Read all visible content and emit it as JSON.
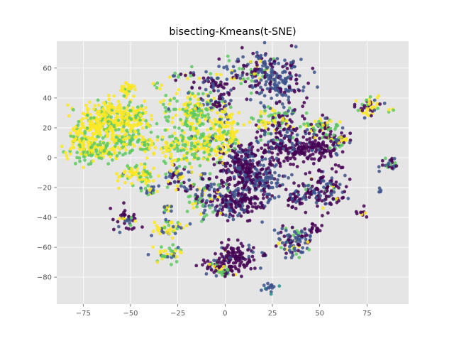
{
  "chart_data": {
    "type": "scatter",
    "title": "bisecting-Kmeans(t-SNE)",
    "xlabel": "",
    "ylabel": "",
    "xlim": [
      -89,
      97
    ],
    "ylim": [
      -98,
      78
    ],
    "x_ticks": [
      -75,
      -50,
      -25,
      0,
      25,
      50,
      75
    ],
    "x_tick_labels": [
      "−75",
      "−50",
      "−25",
      "0",
      "25",
      "50",
      "75"
    ],
    "y_ticks": [
      -80,
      -60,
      -40,
      -20,
      0,
      20,
      40,
      60
    ],
    "y_tick_labels": [
      "−80",
      "−60",
      "−40",
      "−20",
      "0",
      "20",
      "40",
      "60"
    ],
    "grid": true,
    "legend": "none",
    "style": "ggplot",
    "background_color": "#E5E5E5",
    "grid_color": "#FFFFFF",
    "cluster_colors": [
      "#440154",
      "#3B528B",
      "#21918C",
      "#5EC962",
      "#FDE725"
    ],
    "regions": [
      {
        "x": -63,
        "y": 25,
        "sx": 7,
        "sy": 7,
        "n": 260,
        "mix": [
          0,
          0,
          0,
          0.2,
          0.8
        ]
      },
      {
        "x": -75,
        "y": 10,
        "sx": 5,
        "sy": 6,
        "n": 140,
        "mix": [
          0,
          0,
          0,
          0.25,
          0.75
        ]
      },
      {
        "x": -65,
        "y": 4,
        "sx": 5,
        "sy": 4,
        "n": 80,
        "mix": [
          0,
          0,
          0,
          0.4,
          0.6
        ]
      },
      {
        "x": -47,
        "y": 25,
        "sx": 5,
        "sy": 7,
        "n": 110,
        "mix": [
          0,
          0,
          0,
          0.35,
          0.65
        ]
      },
      {
        "x": -53,
        "y": 12,
        "sx": 4,
        "sy": 4,
        "n": 60,
        "mix": [
          0,
          0,
          0,
          0.5,
          0.5
        ]
      },
      {
        "x": -42,
        "y": 8,
        "sx": 3,
        "sy": 3,
        "n": 40,
        "mix": [
          0,
          0,
          0,
          0.4,
          0.6
        ]
      },
      {
        "x": -51,
        "y": 46,
        "sx": 2.5,
        "sy": 2,
        "n": 30,
        "mix": [
          0,
          0,
          0,
          0.2,
          0.8
        ]
      },
      {
        "x": -46,
        "y": -11,
        "sx": 5,
        "sy": 4,
        "n": 80,
        "mix": [
          0,
          0.05,
          0,
          0.25,
          0.7
        ]
      },
      {
        "x": -40,
        "y": -22,
        "sx": 2.5,
        "sy": 2,
        "n": 20,
        "mix": [
          0,
          0.3,
          0,
          0.4,
          0.3
        ]
      },
      {
        "x": -17,
        "y": 32,
        "sx": 7,
        "sy": 6,
        "n": 150,
        "mix": [
          0,
          0.05,
          0,
          0.55,
          0.4
        ]
      },
      {
        "x": -13,
        "y": 10,
        "sx": 7,
        "sy": 7,
        "n": 170,
        "mix": [
          0,
          0.05,
          0,
          0.5,
          0.45
        ]
      },
      {
        "x": -27,
        "y": 6,
        "sx": 4,
        "sy": 5,
        "n": 60,
        "mix": [
          0,
          0,
          0,
          0.6,
          0.4
        ]
      },
      {
        "x": 0,
        "y": 20,
        "sx": 4,
        "sy": 7,
        "n": 110,
        "mix": [
          0,
          0.05,
          0,
          0.15,
          0.8
        ]
      },
      {
        "x": 10,
        "y": -5,
        "sx": 7,
        "sy": 8,
        "n": 220,
        "mix": [
          0.75,
          0.25,
          0,
          0,
          0
        ]
      },
      {
        "x": 20,
        "y": -15,
        "sx": 7,
        "sy": 6,
        "n": 110,
        "mix": [
          0.2,
          0.8,
          0,
          0,
          0
        ]
      },
      {
        "x": 7,
        "y": -30,
        "sx": 8,
        "sy": 6,
        "n": 190,
        "mix": [
          0.7,
          0.3,
          0,
          0,
          0
        ]
      },
      {
        "x": 30,
        "y": 8,
        "sx": 6,
        "sy": 7,
        "n": 150,
        "mix": [
          0.7,
          0.3,
          0,
          0,
          0
        ]
      },
      {
        "x": 25,
        "y": 25,
        "sx": 6,
        "sy": 5,
        "n": 70,
        "mix": [
          0.1,
          0.05,
          0,
          0.4,
          0.45
        ]
      },
      {
        "x": 28,
        "y": 52,
        "sx": 8,
        "sy": 9,
        "n": 180,
        "mix": [
          0.3,
          0.7,
          0,
          0,
          0
        ]
      },
      {
        "x": 14,
        "y": 58,
        "sx": 7,
        "sy": 6,
        "n": 90,
        "mix": [
          0.4,
          0.4,
          0,
          0.1,
          0.1
        ]
      },
      {
        "x": -5,
        "y": 50,
        "sx": 6,
        "sy": 4,
        "n": 50,
        "mix": [
          0.4,
          0.4,
          0,
          0.1,
          0.1
        ]
      },
      {
        "x": -2,
        "y": 35,
        "sx": 3,
        "sy": 3,
        "n": 30,
        "mix": [
          0.5,
          0.3,
          0,
          0.1,
          0.1
        ]
      },
      {
        "x": -10,
        "y": -25,
        "sx": 6,
        "sy": 7,
        "n": 100,
        "mix": [
          0.2,
          0.35,
          0,
          0.25,
          0.2
        ]
      },
      {
        "x": -25,
        "y": -12,
        "sx": 4,
        "sy": 4,
        "n": 45,
        "mix": [
          0.2,
          0.4,
          0,
          0.2,
          0.2
        ]
      },
      {
        "x": -31,
        "y": -34,
        "sx": 2,
        "sy": 1.5,
        "n": 12,
        "mix": [
          0,
          0.3,
          0,
          0.3,
          0.4
        ]
      },
      {
        "x": 5,
        "y": -67,
        "sx": 5,
        "sy": 5,
        "n": 120,
        "mix": [
          0.85,
          0.1,
          0,
          0,
          0.05
        ]
      },
      {
        "x": -6,
        "y": -73,
        "sx": 3,
        "sy": 3,
        "n": 35,
        "mix": [
          0.6,
          0.2,
          0,
          0.1,
          0.1
        ]
      },
      {
        "x": 0,
        "y": -76,
        "sx": 3,
        "sy": 2,
        "n": 20,
        "mix": [
          0.3,
          0.2,
          0,
          0.3,
          0.2
        ]
      },
      {
        "x": -30,
        "y": -47,
        "sx": 4,
        "sy": 3,
        "n": 45,
        "mix": [
          0,
          0.3,
          0,
          0.1,
          0.6
        ]
      },
      {
        "x": -30,
        "y": -64,
        "sx": 4,
        "sy": 3,
        "n": 40,
        "mix": [
          0,
          0.2,
          0,
          0.3,
          0.5
        ]
      },
      {
        "x": -53,
        "y": -42,
        "sx": 3,
        "sy": 5,
        "n": 40,
        "mix": [
          0.6,
          0.2,
          0,
          0.1,
          0.1
        ]
      },
      {
        "x": 48,
        "y": 7,
        "sx": 7,
        "sy": 5,
        "n": 130,
        "mix": [
          0.9,
          0.1,
          0,
          0,
          0
        ]
      },
      {
        "x": 50,
        "y": 20,
        "sx": 5,
        "sy": 4,
        "n": 70,
        "mix": [
          0.4,
          0.1,
          0,
          0.3,
          0.2
        ]
      },
      {
        "x": 60,
        "y": 10,
        "sx": 3,
        "sy": 3,
        "n": 30,
        "mix": [
          0.3,
          0.2,
          0,
          0.2,
          0.3
        ]
      },
      {
        "x": 52,
        "y": -22,
        "sx": 6,
        "sy": 6,
        "n": 130,
        "mix": [
          0.6,
          0.3,
          0,
          0.05,
          0.05
        ]
      },
      {
        "x": 38,
        "y": -27,
        "sx": 3,
        "sy": 3,
        "n": 40,
        "mix": [
          0.7,
          0.3,
          0,
          0,
          0
        ]
      },
      {
        "x": 36,
        "y": -55,
        "sx": 6,
        "sy": 5,
        "n": 100,
        "mix": [
          0.3,
          0.5,
          0,
          0.1,
          0.1
        ]
      },
      {
        "x": 48,
        "y": -48,
        "sx": 2.5,
        "sy": 2,
        "n": 15,
        "mix": [
          0.8,
          0.2,
          0,
          0,
          0
        ]
      },
      {
        "x": 77,
        "y": 34,
        "sx": 3.5,
        "sy": 3,
        "n": 50,
        "mix": [
          0.3,
          0.1,
          0,
          0.1,
          0.5
        ]
      },
      {
        "x": 86,
        "y": -5,
        "sx": 2.5,
        "sy": 2.5,
        "n": 25,
        "mix": [
          0.3,
          0.5,
          0,
          0.1,
          0.1
        ]
      },
      {
        "x": 73,
        "y": -37,
        "sx": 1.5,
        "sy": 2,
        "n": 10,
        "mix": [
          0.8,
          0,
          0,
          0,
          0.2
        ]
      },
      {
        "x": 82,
        "y": -22,
        "sx": 0.8,
        "sy": 0.8,
        "n": 4,
        "mix": [
          0,
          1,
          0,
          0,
          0
        ]
      },
      {
        "x": 23,
        "y": -87,
        "sx": 2,
        "sy": 1.5,
        "n": 15,
        "mix": [
          0,
          0.7,
          0.3,
          0,
          0
        ]
      },
      {
        "x": -27,
        "y": 56,
        "sx": 1.5,
        "sy": 1.5,
        "n": 8,
        "mix": [
          0.3,
          0.3,
          0,
          0.3,
          0.1
        ]
      },
      {
        "x": -18,
        "y": 55,
        "sx": 2,
        "sy": 2,
        "n": 10,
        "mix": [
          0.3,
          0.3,
          0,
          0.2,
          0.2
        ]
      },
      {
        "x": -35,
        "y": 48,
        "sx": 1.5,
        "sy": 1.5,
        "n": 6,
        "mix": [
          0,
          0,
          0,
          0.5,
          0.5
        ]
      },
      {
        "x": 21,
        "y": -65,
        "sx": 1,
        "sy": 1,
        "n": 5,
        "mix": [
          0.6,
          0.4,
          0,
          0,
          0
        ]
      },
      {
        "x": 88,
        "y": 32,
        "sx": 1,
        "sy": 1,
        "n": 4,
        "mix": [
          0,
          0,
          0,
          0.5,
          0.5
        ]
      }
    ]
  }
}
